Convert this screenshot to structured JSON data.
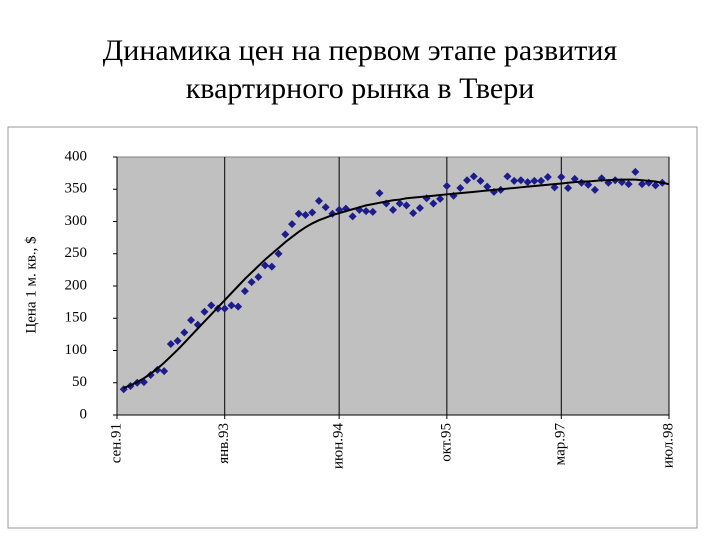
{
  "chart_data": {
    "type": "line",
    "title": "Динамика цен на первом этапе развития квартирного рынка в Твери",
    "y_label": "Цена 1 м. кв., $",
    "categories": [
      "сен.91",
      null,
      null,
      null,
      null,
      null,
      null,
      null,
      null,
      null,
      null,
      null,
      null,
      null,
      null,
      null,
      "янв.93",
      null,
      null,
      null,
      null,
      null,
      null,
      null,
      null,
      null,
      null,
      null,
      null,
      null,
      null,
      null,
      null,
      "июн.94",
      null,
      null,
      null,
      null,
      null,
      null,
      null,
      null,
      null,
      null,
      null,
      null,
      null,
      null,
      null,
      "окт.95",
      null,
      null,
      null,
      null,
      null,
      null,
      null,
      null,
      null,
      null,
      null,
      null,
      null,
      null,
      null,
      null,
      "мар.97",
      null,
      null,
      null,
      null,
      null,
      null,
      null,
      null,
      null,
      null,
      null,
      null,
      null,
      null,
      null,
      "июл.98"
    ],
    "series": [
      {
        "mode": "markers",
        "marker": "diamond",
        "color": "#1c1c8c",
        "values": [
          null,
          40,
          45,
          50,
          51,
          62,
          70,
          68,
          110,
          115,
          128,
          147,
          140,
          160,
          170,
          165,
          165,
          170,
          168,
          192,
          206,
          214,
          232,
          230,
          250,
          280,
          296,
          312,
          310,
          314,
          332,
          322,
          312,
          318,
          320,
          308,
          318,
          316,
          315,
          344,
          328,
          318,
          328,
          325,
          313,
          321,
          336,
          328,
          335,
          355,
          340,
          352,
          364,
          370,
          363,
          354,
          346,
          349,
          370,
          363,
          364,
          361,
          363,
          363,
          369,
          353,
          369,
          352,
          366,
          360,
          357,
          349,
          367,
          360,
          364,
          361,
          358,
          377,
          358,
          360,
          356,
          360,
          null
        ]
      },
      {
        "mode": "line",
        "color": "#000000",
        "values": [
          null,
          42,
          46,
          51,
          57,
          64,
          72,
          81,
          91,
          101,
          112,
          123,
          134,
          145,
          156,
          167,
          178,
          189,
          200,
          211,
          221,
          231,
          241,
          250,
          259,
          268,
          276,
          284,
          291,
          297,
          302,
          306,
          310,
          313,
          316,
          319,
          322,
          325,
          327,
          329,
          331,
          333,
          334,
          336,
          337,
          338,
          339,
          340,
          341,
          342,
          343,
          344,
          345,
          346,
          347,
          348,
          349,
          350,
          351,
          352,
          353,
          354,
          355,
          356,
          357,
          358,
          359,
          360,
          361,
          362,
          362,
          363,
          364,
          364,
          365,
          365,
          365,
          365,
          364,
          363,
          362,
          360,
          358
        ]
      }
    ],
    "ylim": [
      0,
      400
    ],
    "yticks": [
      0,
      50,
      100,
      150,
      200,
      250,
      300,
      350,
      400
    ],
    "grid": "x",
    "plot_background": "#c0c0c0"
  }
}
